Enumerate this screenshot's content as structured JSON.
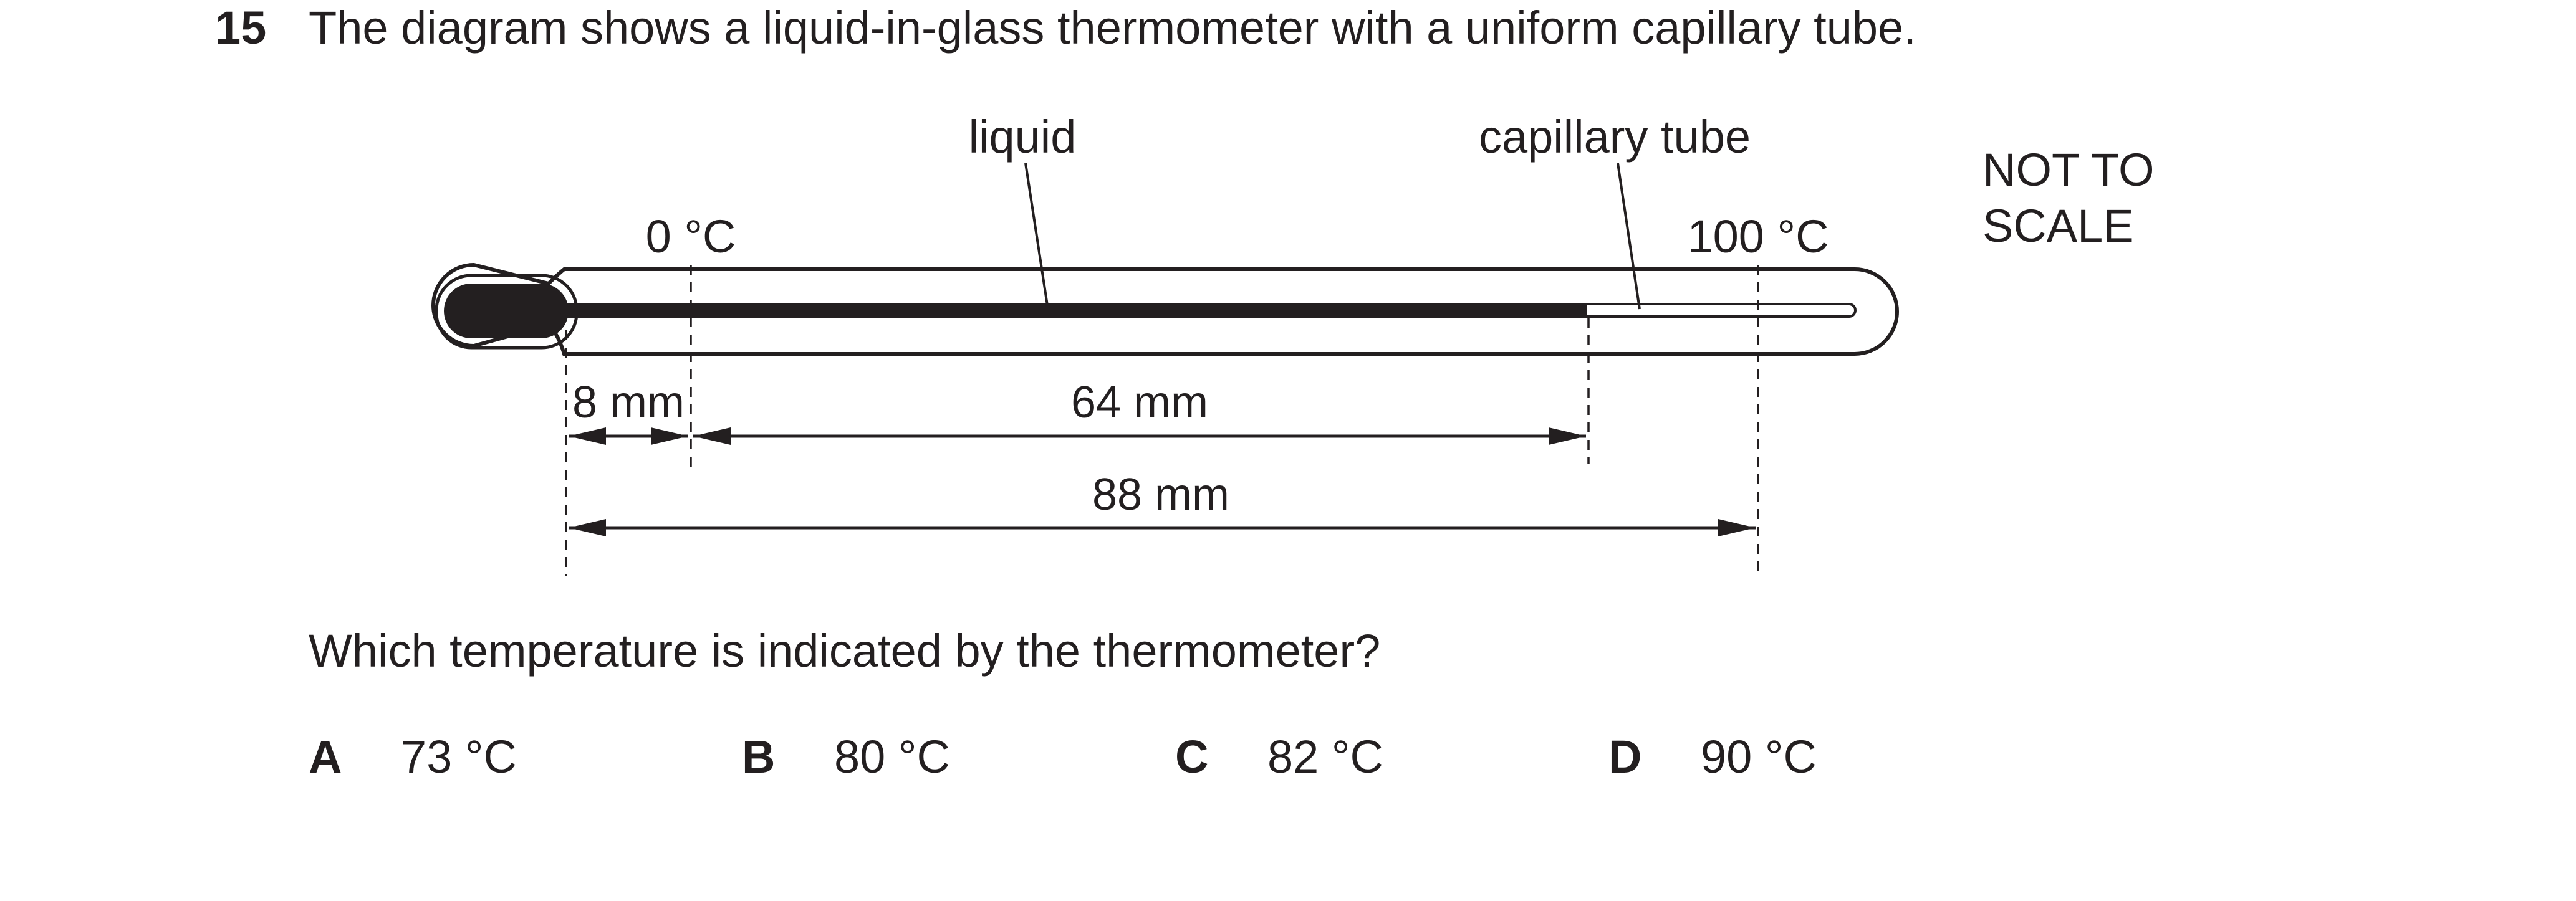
{
  "question": {
    "number": "15",
    "text": "The diagram shows a liquid-in-glass thermometer with a uniform capillary tube.",
    "prompt": "Which temperature is indicated by the thermometer?"
  },
  "diagram": {
    "label_liquid": "liquid",
    "label_capillary": "capillary tube",
    "label_zero": "0 °C",
    "label_hundred": "100 °C",
    "dim_8": "8 mm",
    "dim_64": "64 mm",
    "dim_88": "88 mm",
    "not_to_scale_line1": "NOT TO",
    "not_to_scale_line2": "SCALE"
  },
  "options": [
    {
      "letter": "A",
      "value": "73 °C"
    },
    {
      "letter": "B",
      "value": "80 °C"
    },
    {
      "letter": "C",
      "value": "82 °C"
    },
    {
      "letter": "D",
      "value": "90 °C"
    }
  ]
}
